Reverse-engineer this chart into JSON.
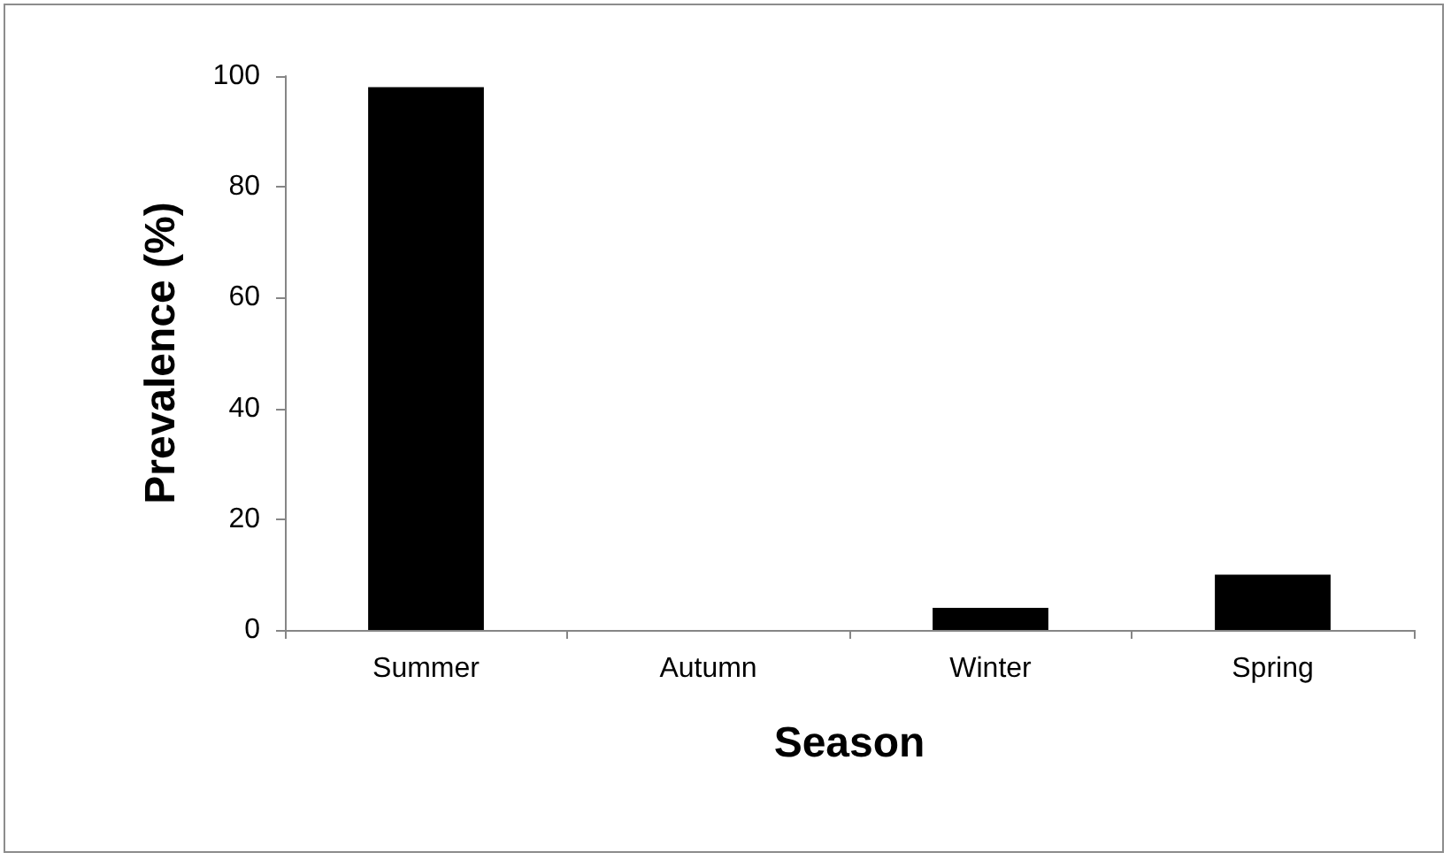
{
  "chart_data": {
    "type": "bar",
    "xlabel": "Season",
    "ylabel": "Prevalence (%)",
    "categories": [
      "Summer",
      "Autumn",
      "Winter",
      "Spring"
    ],
    "values": [
      98,
      0,
      4,
      10
    ],
    "color": "#000000",
    "ylim": [
      0,
      100
    ],
    "yticks": [
      0,
      20,
      40,
      60,
      80,
      100
    ],
    "grid": false
  }
}
